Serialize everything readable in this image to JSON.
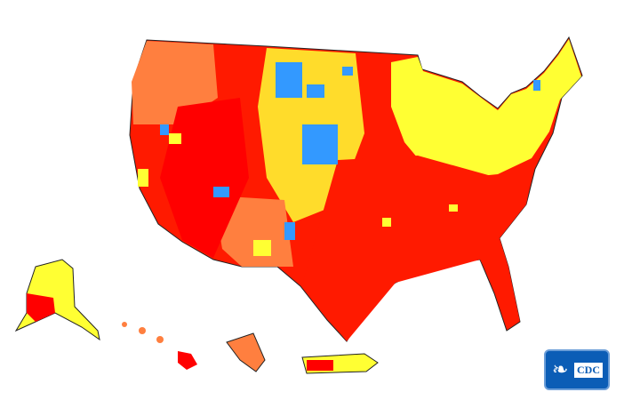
{
  "logo": {
    "text": "CDC"
  },
  "colors": {
    "high": "#ff0000",
    "substantial": "#ff7f3f",
    "moderate": "#ffff33",
    "low": "#3399ff",
    "background": "#ffffff",
    "logo": "#0b5db6"
  },
  "regions": [
    "contiguous-us",
    "alaska",
    "hawaii",
    "guam",
    "puerto-rico"
  ]
}
